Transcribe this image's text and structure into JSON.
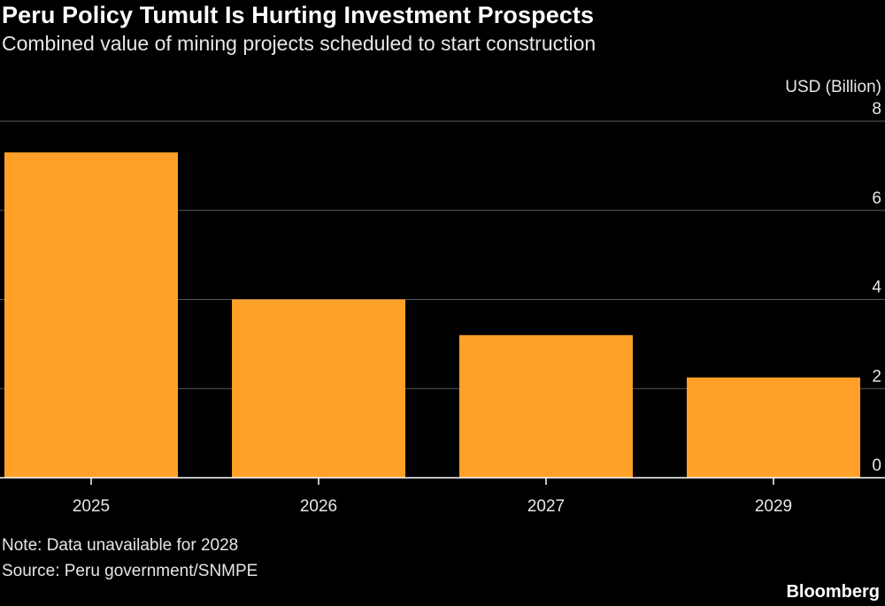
{
  "header": {
    "title": "Peru Policy Tumult Is Hurting Investment Prospects",
    "subtitle": "Combined value of mining projects scheduled to start construction"
  },
  "footer": {
    "note": "Note: Data unavailable for 2028",
    "source": "Source: Peru government/SNMPE",
    "brand": "Bloomberg"
  },
  "colors": {
    "bar": "#FFA028",
    "gridline": "#5a5a5a",
    "axis": "#ffffff",
    "background": "#000000"
  },
  "chart_data": {
    "type": "bar",
    "title": "Peru Policy Tumult Is Hurting Investment Prospects",
    "subtitle": "Combined value of mining projects scheduled to start construction",
    "ylabel": "USD (Billion)",
    "categories": [
      "2025",
      "2026",
      "2027",
      "2029"
    ],
    "values": [
      7.3,
      4.0,
      3.2,
      2.25
    ],
    "ylim": [
      0,
      8
    ],
    "yticks": [
      0,
      2,
      4,
      6,
      8
    ],
    "grid": true,
    "y_axis_side": "right"
  }
}
